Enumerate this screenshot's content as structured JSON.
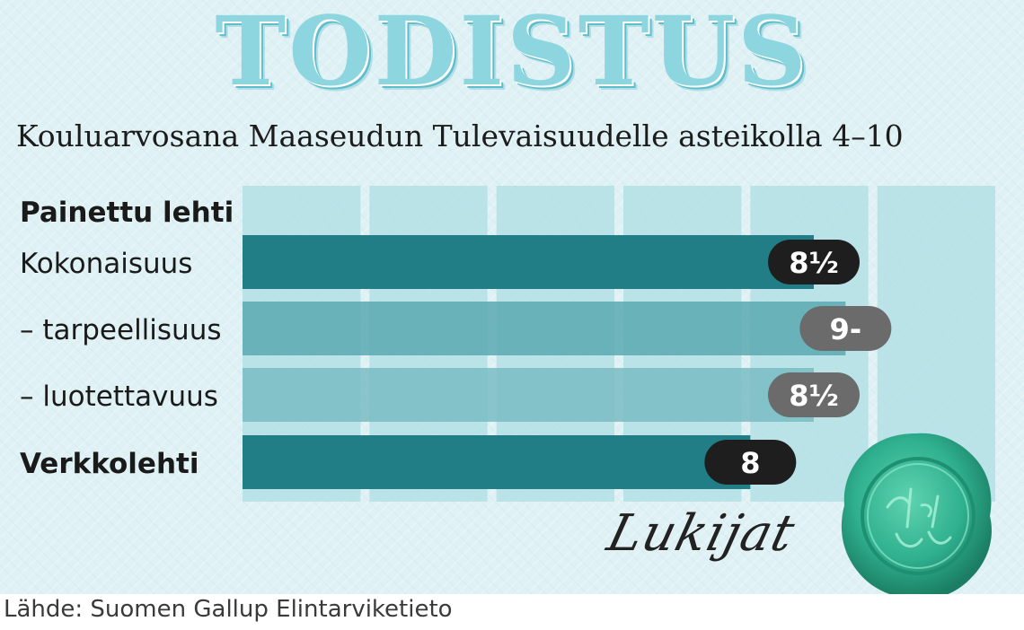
{
  "header": {
    "title": "TODISTUS",
    "subtitle": "Kouluarvosana Maaseudun Tulevaisuudelle asteikolla 4–10"
  },
  "chart_data": {
    "type": "bar",
    "orientation": "horizontal",
    "categories": [
      "Painettu lehti",
      "Kokonaisuus",
      "– tarpeellisuus",
      "– luotettavuus",
      "Verkkolehti"
    ],
    "values": [
      null,
      8.5,
      8.75,
      8.5,
      8
    ],
    "data_labels": [
      "",
      "8½",
      "9-",
      "8½",
      "8"
    ],
    "xlim": [
      4,
      10
    ],
    "grid": true,
    "colors": {
      "grid_column": "#aedde4",
      "bar_dark": "#227e86",
      "bar_medium": "#5aa9b0",
      "bar_light": "#79bcc2",
      "label_black": "#1e1e1e",
      "label_gray": "#6b6b6b"
    }
  },
  "signature": "Lukijat",
  "seal": {
    "icon": "wax-seal-icon",
    "color": "#2fb08e"
  },
  "footer": {
    "source": "Lähde: Suomen Gallup Elintarviketieto"
  }
}
